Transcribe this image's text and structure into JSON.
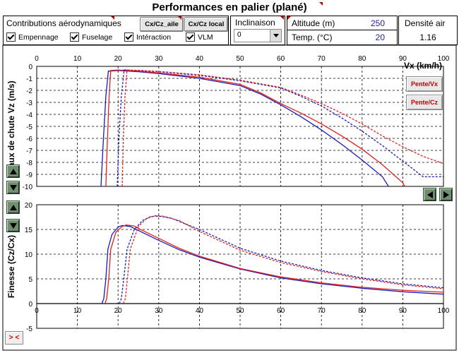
{
  "title": "Performances en palier (plané)",
  "contributions": {
    "heading": "Contributions aérodynamiques",
    "checkboxes": [
      {
        "label": "Empennage",
        "checked": true
      },
      {
        "label": "Fuselage",
        "checked": true
      },
      {
        "label": "Intéraction",
        "checked": true
      },
      {
        "label": "VLM",
        "checked": true
      }
    ],
    "btn_aile": "Cx/Cz_aile",
    "btn_local": "Cx/Cz local"
  },
  "inclinaison": {
    "label": "Inclinaison",
    "value": "0"
  },
  "altitude": {
    "label": "Altitude (m)",
    "value": "250"
  },
  "temperature": {
    "label": "Temp. (°C)",
    "value": "20"
  },
  "densite": {
    "label": "Densité air",
    "value": "1.16"
  },
  "buttons": {
    "pente_vx": "Pente/Vx",
    "pente_cz": "Pente/Cz",
    "toggle": "> <"
  },
  "colors": {
    "blue": "#1a1ab8",
    "red": "#e02020",
    "purple": "#8a1e8a",
    "grid": "#000000"
  },
  "icons": [
    "arrow-up-icon",
    "arrow-down-icon",
    "arrow-left-icon",
    "arrow-right-icon"
  ],
  "chart_data": [
    {
      "type": "line",
      "xlabel": "Vx (km/h)",
      "ylabel": "Taux de chute Vz (m/s)",
      "xlim": [
        0,
        100
      ],
      "ylim": [
        -10,
        0
      ],
      "xticks": [
        0,
        10,
        20,
        30,
        40,
        50,
        60,
        70,
        80,
        90,
        100
      ],
      "yticks": [
        0,
        -1,
        -2,
        -3,
        -4,
        -5,
        -6,
        -7,
        -8,
        -9,
        -10
      ],
      "grid": true,
      "series": [
        {
          "color": "#1a1ab8",
          "style": "solid",
          "points": [
            [
              15.8,
              -10
            ],
            [
              16.4,
              -6
            ],
            [
              17.0,
              -2.5
            ],
            [
              17.6,
              -0.4
            ],
            [
              20,
              -0.35
            ],
            [
              25,
              -0.45
            ],
            [
              30,
              -0.6
            ],
            [
              40,
              -1.0
            ],
            [
              50,
              -1.6
            ],
            [
              55,
              -2.3
            ],
            [
              60,
              -3.2
            ],
            [
              65,
              -4.2
            ],
            [
              70,
              -5.3
            ],
            [
              75,
              -6.5
            ],
            [
              80,
              -7.8
            ],
            [
              85,
              -9.2
            ],
            [
              86.5,
              -10
            ]
          ]
        },
        {
          "color": "#e02020",
          "style": "solid",
          "points": [
            [
              17.0,
              -10
            ],
            [
              17.4,
              -6
            ],
            [
              17.8,
              -2.5
            ],
            [
              18.2,
              -0.35
            ],
            [
              20,
              -0.3
            ],
            [
              25,
              -0.4
            ],
            [
              30,
              -0.55
            ],
            [
              40,
              -0.9
            ],
            [
              50,
              -1.5
            ],
            [
              55,
              -2.2
            ],
            [
              60,
              -3.1
            ],
            [
              65,
              -3.9
            ],
            [
              70,
              -4.8
            ],
            [
              75,
              -5.8
            ],
            [
              80,
              -6.9
            ],
            [
              85,
              -8.2
            ],
            [
              90,
              -9.7
            ],
            [
              90.5,
              -10
            ]
          ]
        },
        {
          "color": "#1a1ab8",
          "style": "dashed",
          "points": [
            [
              19.8,
              -10
            ],
            [
              20.2,
              -6
            ],
            [
              20.8,
              -2.5
            ],
            [
              21.5,
              -0.3
            ],
            [
              25,
              -0.35
            ],
            [
              30,
              -0.45
            ],
            [
              40,
              -0.75
            ],
            [
              50,
              -1.2
            ],
            [
              60,
              -1.8
            ],
            [
              65,
              -2.5
            ],
            [
              70,
              -3.3
            ],
            [
              75,
              -4.3
            ],
            [
              80,
              -5.4
            ],
            [
              85,
              -6.6
            ],
            [
              90,
              -7.9
            ],
            [
              95,
              -9.2
            ],
            [
              100,
              -9.2
            ]
          ]
        },
        {
          "color": "#e02020",
          "style": "dashed",
          "points": [
            [
              21.0,
              -10
            ],
            [
              21.3,
              -6
            ],
            [
              21.7,
              -2.5
            ],
            [
              22.2,
              -0.3
            ],
            [
              25,
              -0.33
            ],
            [
              30,
              -0.42
            ],
            [
              40,
              -0.7
            ],
            [
              50,
              -1.15
            ],
            [
              60,
              -1.75
            ],
            [
              65,
              -2.4
            ],
            [
              70,
              -3.1
            ],
            [
              75,
              -3.9
            ],
            [
              80,
              -4.8
            ],
            [
              85,
              -5.8
            ],
            [
              90,
              -6.7
            ],
            [
              95,
              -7.5
            ],
            [
              100,
              -8.1
            ]
          ]
        }
      ]
    },
    {
      "type": "line",
      "xlabel": "",
      "ylabel": "Finesse (Cz/Cx)",
      "xlim": [
        0,
        100
      ],
      "ylim": [
        -5,
        20
      ],
      "xticks": [
        0,
        10,
        20,
        30,
        40,
        50,
        60,
        70,
        80,
        90,
        100
      ],
      "yticks": [
        20,
        15,
        10,
        5,
        0,
        -5
      ],
      "grid": true,
      "series": [
        {
          "color": "#1a1ab8",
          "style": "solid",
          "points": [
            [
              16.0,
              0
            ],
            [
              16.5,
              1
            ],
            [
              17.0,
              5
            ],
            [
              17.5,
              11
            ],
            [
              18.5,
              14
            ],
            [
              20,
              15.5
            ],
            [
              21,
              15.8
            ],
            [
              23,
              15.6
            ],
            [
              25,
              14.8
            ],
            [
              30,
              12.8
            ],
            [
              35,
              10.9
            ],
            [
              40,
              9.4
            ],
            [
              50,
              7.0
            ],
            [
              60,
              5.2
            ],
            [
              70,
              4.0
            ],
            [
              80,
              3.1
            ],
            [
              90,
              2.4
            ],
            [
              100,
              1.9
            ]
          ]
        },
        {
          "color": "#e02020",
          "style": "solid",
          "points": [
            [
              16.8,
              0
            ],
            [
              17.2,
              1
            ],
            [
              17.7,
              5
            ],
            [
              18.2,
              11
            ],
            [
              19.5,
              14.5
            ],
            [
              21,
              15.6
            ],
            [
              22,
              15.9
            ],
            [
              24,
              15.7
            ],
            [
              25,
              15.2
            ],
            [
              30,
              13.2
            ],
            [
              35,
              11.2
            ],
            [
              40,
              9.6
            ],
            [
              50,
              7.1
            ],
            [
              60,
              5.4
            ],
            [
              70,
              4.2
            ],
            [
              80,
              3.3
            ],
            [
              90,
              2.7
            ],
            [
              100,
              2.3
            ]
          ]
        },
        {
          "color": "#1a1ab8",
          "style": "dashed",
          "points": [
            [
              20.3,
              0
            ],
            [
              20.8,
              1
            ],
            [
              21.4,
              5
            ],
            [
              22.2,
              11
            ],
            [
              24,
              15.0
            ],
            [
              26,
              16.8
            ],
            [
              28,
              17.6
            ],
            [
              30,
              17.7
            ],
            [
              33,
              17.3
            ],
            [
              40,
              15.0
            ],
            [
              50,
              11.2
            ],
            [
              60,
              8.6
            ],
            [
              70,
              6.7
            ],
            [
              80,
              5.2
            ],
            [
              90,
              4.0
            ],
            [
              100,
              3.2
            ]
          ]
        },
        {
          "color": "#e02020",
          "style": "dashed",
          "points": [
            [
              21.3,
              0
            ],
            [
              21.8,
              1
            ],
            [
              22.3,
              5
            ],
            [
              23.0,
              11
            ],
            [
              25,
              15.6
            ],
            [
              27,
              17.2
            ],
            [
              29,
              17.8
            ],
            [
              31,
              17.7
            ],
            [
              35,
              16.8
            ],
            [
              40,
              14.6
            ],
            [
              50,
              10.8
            ],
            [
              60,
              8.3
            ],
            [
              70,
              6.5
            ],
            [
              80,
              5.0
            ],
            [
              90,
              3.8
            ],
            [
              100,
              3.0
            ]
          ]
        }
      ]
    }
  ]
}
